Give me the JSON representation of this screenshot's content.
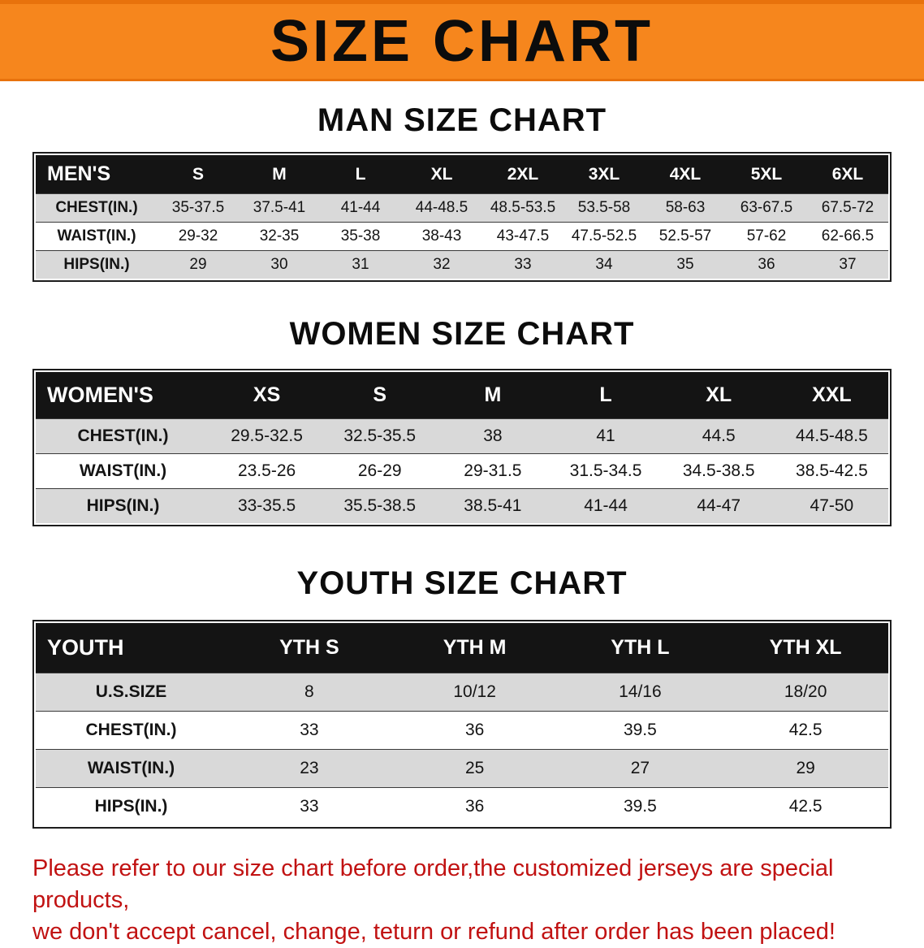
{
  "banner": {
    "title": "SIZE CHART"
  },
  "men": {
    "heading": "MAN SIZE CHART",
    "table": {
      "header": [
        "MEN'S",
        "S",
        "M",
        "L",
        "XL",
        "2XL",
        "3XL",
        "4XL",
        "5XL",
        "6XL"
      ],
      "rows": [
        [
          "CHEST(IN.)",
          "35-37.5",
          "37.5-41",
          "41-44",
          "44-48.5",
          "48.5-53.5",
          "53.5-58",
          "58-63",
          "63-67.5",
          "67.5-72"
        ],
        [
          "WAIST(IN.)",
          "29-32",
          "32-35",
          "35-38",
          "38-43",
          "43-47.5",
          "47.5-52.5",
          "52.5-57",
          "57-62",
          "62-66.5"
        ],
        [
          "HIPS(IN.)",
          "29",
          "30",
          "31",
          "32",
          "33",
          "34",
          "35",
          "36",
          "37"
        ]
      ]
    }
  },
  "women": {
    "heading": "WOMEN SIZE CHART",
    "table": {
      "header": [
        "WOMEN'S",
        "XS",
        "S",
        "M",
        "L",
        "XL",
        "XXL"
      ],
      "rows": [
        [
          "CHEST(IN.)",
          "29.5-32.5",
          "32.5-35.5",
          "38",
          "41",
          "44.5",
          "44.5-48.5"
        ],
        [
          "WAIST(IN.)",
          "23.5-26",
          "26-29",
          "29-31.5",
          "31.5-34.5",
          "34.5-38.5",
          "38.5-42.5"
        ],
        [
          "HIPS(IN.)",
          "33-35.5",
          "35.5-38.5",
          "38.5-41",
          "41-44",
          "44-47",
          "47-50"
        ]
      ]
    }
  },
  "youth": {
    "heading": "YOUTH SIZE CHART",
    "table": {
      "header": [
        "YOUTH",
        "YTH S",
        "YTH M",
        "YTH L",
        "YTH XL"
      ],
      "rows": [
        [
          "U.S.SIZE",
          "8",
          "10/12",
          "14/16",
          "18/20"
        ],
        [
          "CHEST(IN.)",
          "33",
          "36",
          "39.5",
          "42.5"
        ],
        [
          "WAIST(IN.)",
          "23",
          "25",
          "27",
          "29"
        ],
        [
          "HIPS(IN.)",
          "33",
          "36",
          "39.5",
          "42.5"
        ]
      ]
    }
  },
  "disclaimer": {
    "lines": [
      "Please refer to our size chart before order,the customized jerseys are special products,",
      "we don't accept cancel, change, teturn or refund after order has been placed!"
    ]
  },
  "colors": {
    "banner-bg": "#F6861D",
    "banner-edge": "#E8720C",
    "header-bg": "#141414",
    "row-alt": "#D9D9D9",
    "disclaimer-red": "#C11212",
    "text-black": "#111111"
  }
}
